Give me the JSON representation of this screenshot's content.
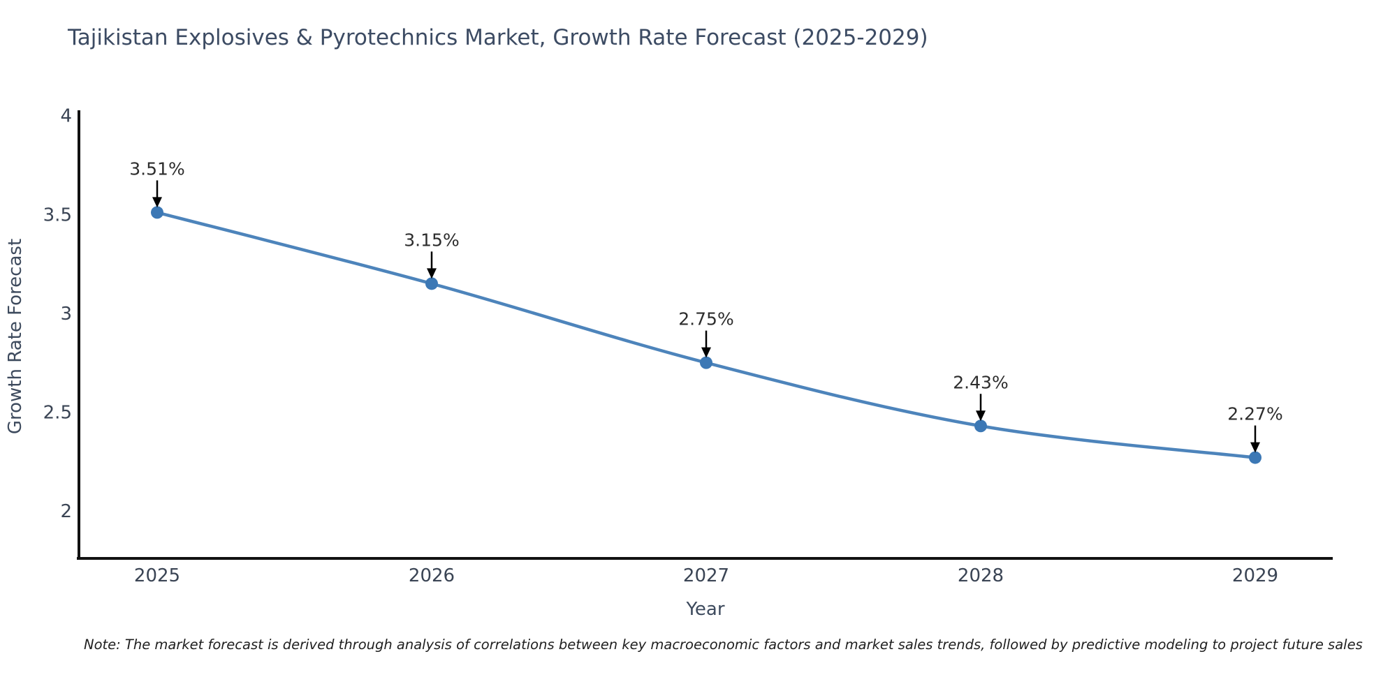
{
  "chart_data": {
    "type": "line",
    "title": "Tajikistan Explosives & Pyrotechnics Market, Growth Rate Forecast (2025-2029)",
    "xlabel": "Year",
    "ylabel": "Growth Rate Forecast",
    "categories": [
      "2025",
      "2026",
      "2027",
      "2028",
      "2029"
    ],
    "values": [
      3.51,
      3.15,
      2.75,
      2.43,
      2.27
    ],
    "point_labels": [
      "3.51%",
      "3.15%",
      "2.75%",
      "2.43%",
      "2.27%"
    ],
    "yticks": {
      "values": [
        4,
        3.5,
        3,
        2.5,
        2
      ],
      "labels": [
        "4",
        "3.5",
        "3",
        "2.5",
        "2"
      ]
    },
    "ylim": [
      1.76,
      4.02
    ],
    "grid": false,
    "legend": "none",
    "line_shape": "spline",
    "colors": {
      "line": "#4d84bb",
      "marker": "#3c78b5",
      "axis": "#111111",
      "title_text": "#3c4b63",
      "axis_title_text": "#3d4a5d",
      "tick_text": "#3a4454",
      "annotation_text": "#2d2d2d",
      "arrow": "#000000",
      "background": "#ffffff"
    },
    "note": "Note: The market forecast is derived through analysis of correlations between key macroeconomic factors and market sales trends, followed by predictive modeling to project future sales"
  }
}
